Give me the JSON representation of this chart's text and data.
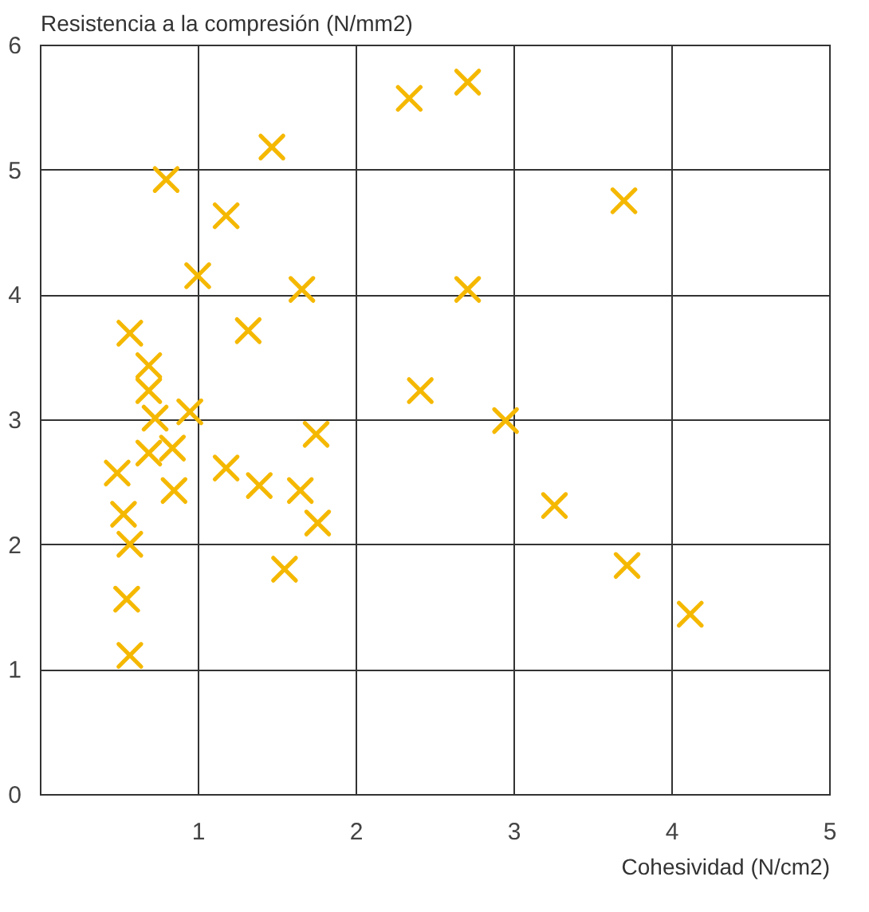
{
  "chart_data": {
    "type": "scatter",
    "xlabel": "Cohesividad (N/cm2)",
    "ylabel": "Resistencia a la compresión (N/mm2)",
    "xlim": [
      0,
      5
    ],
    "xticks": [
      1,
      2,
      3,
      4,
      5
    ],
    "ylim": [
      0,
      6
    ],
    "yticks": [
      0,
      1,
      2,
      3,
      4,
      5,
      6
    ],
    "grid": true,
    "marker": "cross",
    "series": [
      {
        "color": "#f5b800",
        "x": [
          2.34,
          2.71,
          1.47,
          0.8,
          1.18,
          3.7,
          1.0,
          1.66,
          2.71,
          0.57,
          1.32,
          0.69,
          0.69,
          2.41,
          0.73,
          0.95,
          2.95,
          1.75,
          0.69,
          0.84,
          0.49,
          1.18,
          1.39,
          1.65,
          0.85,
          1.76,
          0.53,
          0.57,
          1.55,
          0.55,
          0.57,
          3.26,
          3.72,
          4.12
        ],
        "values": [
          5.57,
          5.7,
          5.18,
          4.92,
          4.63,
          4.75,
          4.15,
          4.04,
          4.04,
          3.69,
          3.71,
          3.43,
          3.23,
          3.23,
          3.01,
          3.06,
          2.99,
          2.88,
          2.73,
          2.77,
          2.57,
          2.61,
          2.47,
          2.43,
          2.43,
          2.17,
          2.24,
          2.0,
          1.8,
          1.56,
          1.11,
          2.31,
          1.83,
          1.44
        ]
      }
    ]
  }
}
